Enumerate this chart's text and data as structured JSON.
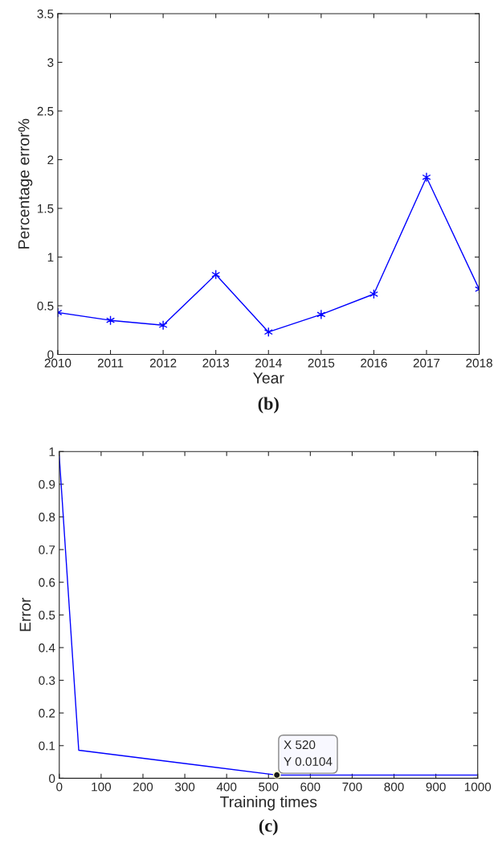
{
  "chart_data": [
    {
      "type": "line",
      "xlabel": "Year",
      "ylabel": "Percentage error%",
      "x": [
        2010,
        2011,
        2012,
        2013,
        2014,
        2015,
        2016,
        2017,
        2018
      ],
      "series": [
        {
          "color": "#0000ff",
          "values": [
            0.43,
            0.35,
            0.3,
            0.82,
            0.23,
            0.41,
            0.62,
            1.82,
            0.67
          ]
        }
      ],
      "xlim": [
        2010,
        2018
      ],
      "xticks": [
        2010,
        2011,
        2012,
        2013,
        2014,
        2015,
        2016,
        2017,
        2018
      ],
      "ylim": [
        0,
        3.5
      ],
      "yticks": [
        0,
        0.5,
        1,
        1.5,
        2,
        2.5,
        3,
        3.5
      ],
      "marker": "cross",
      "line_style": "solid",
      "grid": false,
      "annotations": [
        "(b)"
      ]
    },
    {
      "type": "line",
      "xlabel": "Training times",
      "ylabel": "Error",
      "x": [
        0,
        46.5,
        520,
        1000
      ],
      "series": [
        {
          "color": "#0000ff",
          "values": [
            0.986,
            0.086,
            0.01,
            0.01
          ]
        }
      ],
      "xlim": [
        0,
        1000
      ],
      "xticks": [
        0,
        100,
        200,
        300,
        400,
        500,
        600,
        700,
        800,
        900,
        1000
      ],
      "ylim": [
        0,
        1
      ],
      "yticks": [
        0,
        0.1,
        0.2,
        0.3,
        0.4,
        0.5,
        0.6,
        0.7,
        0.8,
        0.9,
        1
      ],
      "marker": "none",
      "line_style": "solid",
      "grid": false,
      "annotations": [
        {
          "text": "X 520\nY 0.0104",
          "x": 520,
          "y": 0.01
        },
        "(c)"
      ]
    }
  ]
}
